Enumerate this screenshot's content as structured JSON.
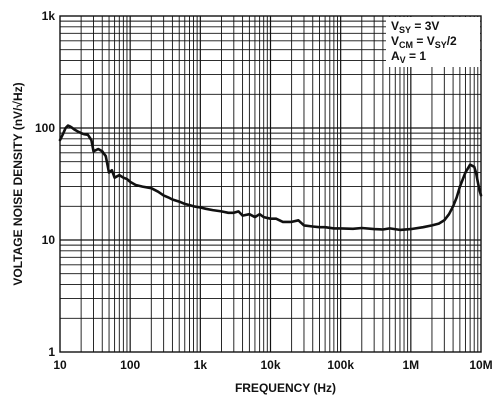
{
  "chart_data": {
    "type": "line",
    "xscale": "log",
    "yscale": "log",
    "xlim": [
      10,
      10000000
    ],
    "ylim": [
      1,
      1000
    ],
    "xlabel": "FREQUENCY (Hz)",
    "ylabel": "VOLTAGE NOISE DENSITY (nV/√Hz)",
    "x_tick_labels": [
      "10",
      "100",
      "1k",
      "10k",
      "100k",
      "1M",
      "10M"
    ],
    "y_tick_labels": [
      "1",
      "10",
      "100",
      "1k"
    ],
    "grid": true,
    "annotation": {
      "line1": {
        "main": "V",
        "sub": "SY",
        "rest": " = 3V"
      },
      "line2": {
        "main": "V",
        "sub": "CM",
        "mid": " = V",
        "sub2": "SY",
        "rest": "/2"
      },
      "line3": {
        "main": "A",
        "sub": "V",
        "rest": " = 1"
      }
    },
    "series": [
      {
        "x": [
          10,
          11,
          12,
          13,
          14,
          15,
          16,
          18,
          20,
          22,
          25,
          28,
          30,
          35,
          40,
          45,
          50,
          55,
          60,
          70,
          80,
          90,
          100,
          120,
          150,
          200,
          250,
          300,
          350,
          400,
          500,
          600,
          700,
          800,
          1000,
          1200,
          1500,
          2000,
          2500,
          3000,
          3500,
          4000,
          5000,
          6000,
          7000,
          8000,
          10000,
          12000,
          15000,
          20000,
          25000,
          30000,
          40000,
          50000,
          60000,
          80000,
          100000,
          150000,
          200000,
          300000,
          400000,
          500000,
          700000,
          1000000,
          1500000,
          2000000,
          2500000,
          3000000,
          3500000,
          4000000,
          4500000,
          5000000,
          6000000,
          7000000,
          8000000,
          8500000,
          9000000,
          9500000,
          10000000
        ],
        "y": [
          78,
          88,
          100,
          105,
          103,
          100,
          97,
          93,
          90,
          88,
          87,
          78,
          62,
          65,
          62,
          56,
          40,
          42,
          36,
          38,
          36,
          35,
          33,
          31,
          30,
          29,
          27,
          25,
          24,
          23,
          22,
          21,
          20.5,
          20,
          19.5,
          19,
          18.5,
          18,
          17.5,
          17.5,
          18,
          16.5,
          17,
          16,
          17,
          16,
          15.5,
          15.5,
          14.5,
          14.5,
          15,
          13.5,
          13.2,
          13,
          13,
          12.7,
          12.7,
          12.6,
          12.8,
          12.5,
          12.4,
          12.7,
          12.3,
          12.5,
          13,
          13.5,
          14,
          15,
          17,
          20,
          24,
          30,
          40,
          47,
          45,
          40,
          33,
          28,
          25
        ]
      }
    ]
  }
}
